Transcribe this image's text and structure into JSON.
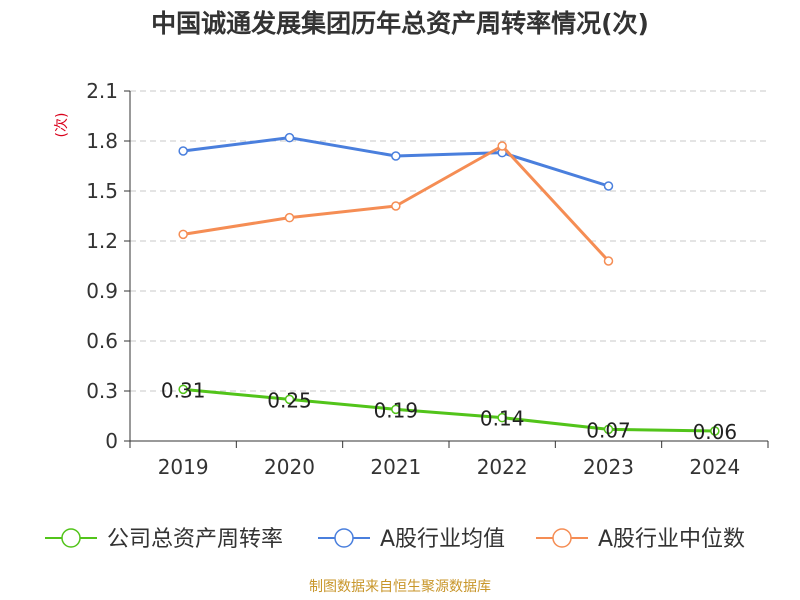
{
  "chart_data": {
    "type": "line",
    "title": "中国诚通发展集团历年总资产周转率情况(次)",
    "ylabel": "(次)",
    "xlabel": "",
    "categories": [
      "2019",
      "2020",
      "2021",
      "2022",
      "2023",
      "2024"
    ],
    "ylim": [
      0,
      2.1
    ],
    "yticks": [
      0,
      0.3,
      0.6,
      0.9,
      1.2,
      1.5,
      1.8,
      2.1
    ],
    "ytick_labels": [
      "0",
      "0.3",
      "0.6",
      "0.9",
      "1.2",
      "1.5",
      "1.8",
      "2.1"
    ],
    "grid": true,
    "legend_position": "bottom",
    "series": [
      {
        "name": "公司总资产周转率",
        "color": "#52c41a",
        "values": [
          0.31,
          0.25,
          0.19,
          0.14,
          0.07,
          0.06
        ],
        "labels": [
          "0.31",
          "0.25",
          "0.19",
          "0.14",
          "0.07",
          "0.06"
        ]
      },
      {
        "name": "A股行业均值",
        "color": "#4a7fdd",
        "values": [
          1.74,
          1.82,
          1.71,
          1.73,
          1.53,
          null
        ]
      },
      {
        "name": "A股行业中位数",
        "color": "#f58d54",
        "values": [
          1.24,
          1.34,
          1.41,
          1.77,
          1.08,
          null
        ]
      }
    ]
  },
  "source": "制图数据来自恒生聚源数据库"
}
